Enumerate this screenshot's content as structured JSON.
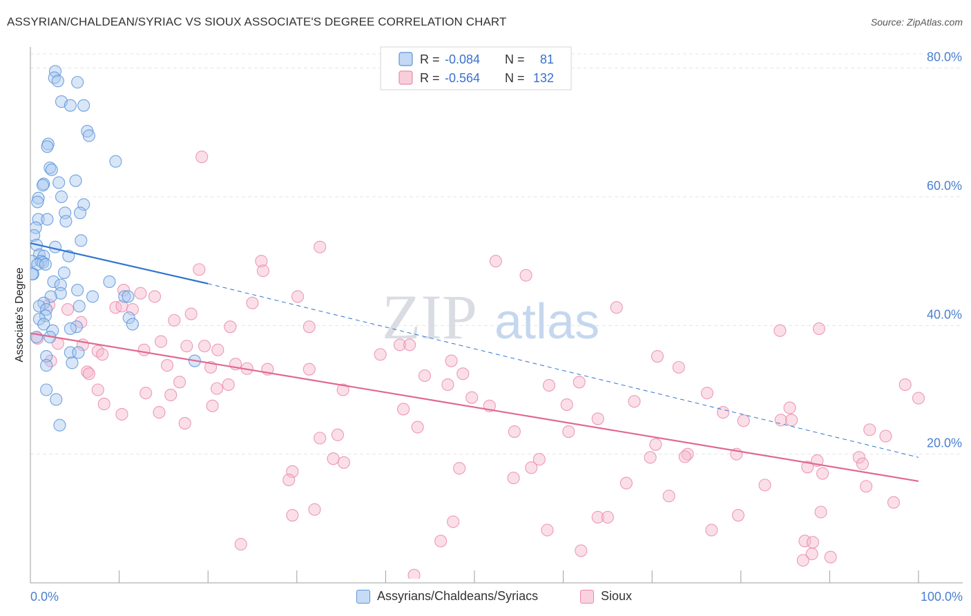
{
  "chart_data": {
    "type": "scatter",
    "title": "ASSYRIAN/CHALDEAN/SYRIAC VS SIOUX ASSOCIATE'S DEGREE CORRELATION CHART",
    "source": "Source: ZipAtlas.com",
    "ylabel": "Associate's Degree",
    "xlim": [
      0,
      100
    ],
    "ylim": [
      0,
      82
    ],
    "x_ticks": [
      "0.0%",
      "100.0%"
    ],
    "y_ticks": [
      {
        "value": 20,
        "label": "20.0%"
      },
      {
        "value": 40,
        "label": "40.0%"
      },
      {
        "value": 60,
        "label": "60.0%"
      },
      {
        "value": 80,
        "label": "80.0%"
      }
    ],
    "watermark": {
      "zip": "ZIP",
      "atlas": "atlas"
    },
    "legend_top": [
      {
        "r_label": "R = ",
        "r": "-0.084",
        "n_label": "N = ",
        "n": "81"
      },
      {
        "r_label": "R = ",
        "r": "-0.564",
        "n_label": "N = ",
        "n": "132"
      }
    ],
    "colors": {
      "blue_fill": "#a9c8ef",
      "blue_stroke": "#5b93d8",
      "blue_line": "#2f74d0",
      "pink_fill": "#f6b9cc",
      "pink_stroke": "#e98aa9",
      "pink_line": "#e2688f"
    },
    "series": [
      {
        "name": "Assyrians/Chaldeans/Syriacs",
        "trend": {
          "x0": 0,
          "y0": 52.8,
          "x1": 20,
          "y1": 46.5,
          "dash_x1": 100,
          "dash_y1": 19.5
        },
        "points": [
          [
            2.8,
            79.5
          ],
          [
            2.7,
            78.5
          ],
          [
            3.1,
            78.0
          ],
          [
            5.3,
            77.8
          ],
          [
            3.5,
            74.8
          ],
          [
            4.5,
            74.2
          ],
          [
            6.0,
            74.2
          ],
          [
            6.4,
            70.2
          ],
          [
            6.6,
            69.5
          ],
          [
            2.0,
            68.2
          ],
          [
            1.9,
            67.8
          ],
          [
            9.6,
            65.5
          ],
          [
            2.2,
            64.5
          ],
          [
            2.4,
            64.2
          ],
          [
            1.5,
            62.0
          ],
          [
            1.4,
            61.8
          ],
          [
            3.2,
            62.2
          ],
          [
            5.1,
            62.5
          ],
          [
            3.5,
            60.0
          ],
          [
            0.9,
            59.8
          ],
          [
            0.8,
            59.2
          ],
          [
            6.0,
            58.8
          ],
          [
            3.9,
            57.5
          ],
          [
            5.6,
            57.5
          ],
          [
            0.9,
            56.5
          ],
          [
            1.9,
            56.5
          ],
          [
            4.0,
            56.2
          ],
          [
            0.6,
            55.2
          ],
          [
            0.4,
            54.0
          ],
          [
            5.7,
            53.2
          ],
          [
            0.7,
            52.5
          ],
          [
            2.8,
            52.2
          ],
          [
            1.0,
            51.0
          ],
          [
            1.5,
            50.8
          ],
          [
            4.3,
            50.8
          ],
          [
            0.2,
            50.0
          ],
          [
            1.2,
            50.0
          ],
          [
            1.4,
            49.8
          ],
          [
            0.8,
            49.5
          ],
          [
            1.7,
            49.5
          ],
          [
            0.3,
            48.0
          ],
          [
            0.2,
            48.0
          ],
          [
            3.8,
            48.2
          ],
          [
            8.9,
            46.8
          ],
          [
            2.6,
            46.8
          ],
          [
            3.4,
            46.3
          ],
          [
            5.3,
            45.5
          ],
          [
            3.4,
            45.0
          ],
          [
            2.3,
            44.5
          ],
          [
            7.0,
            44.5
          ],
          [
            10.6,
            44.5
          ],
          [
            11.0,
            44.5
          ],
          [
            1.5,
            43.5
          ],
          [
            1.0,
            43.0
          ],
          [
            5.5,
            43.0
          ],
          [
            1.8,
            42.5
          ],
          [
            1.7,
            41.5
          ],
          [
            11.1,
            41.2
          ],
          [
            1.0,
            41.0
          ],
          [
            11.5,
            40.2
          ],
          [
            1.5,
            40.2
          ],
          [
            5.2,
            39.8
          ],
          [
            4.5,
            39.5
          ],
          [
            2.5,
            39.2
          ],
          [
            0.7,
            38.2
          ],
          [
            2.2,
            38.2
          ],
          [
            4.5,
            35.8
          ],
          [
            5.4,
            35.8
          ],
          [
            1.8,
            35.2
          ],
          [
            18.5,
            34.5
          ],
          [
            4.7,
            34.2
          ],
          [
            1.8,
            33.8
          ],
          [
            1.8,
            30.0
          ],
          [
            2.9,
            28.5
          ],
          [
            3.3,
            24.5
          ]
        ]
      },
      {
        "name": "Sioux",
        "trend": {
          "x0": 0,
          "y0": 38.8,
          "x1": 100,
          "y1": 15.8
        },
        "points": [
          [
            19.3,
            66.2
          ],
          [
            32.6,
            52.2
          ],
          [
            26.0,
            50.0
          ],
          [
            52.4,
            50.0
          ],
          [
            26.2,
            48.5
          ],
          [
            19.0,
            48.7
          ],
          [
            55.8,
            47.8
          ],
          [
            10.5,
            45.5
          ],
          [
            12.4,
            45.0
          ],
          [
            14.0,
            44.5
          ],
          [
            30.1,
            44.5
          ],
          [
            2.1,
            43.2
          ],
          [
            25.0,
            43.5
          ],
          [
            9.6,
            42.8
          ],
          [
            10.3,
            43.0
          ],
          [
            11.5,
            42.5
          ],
          [
            4.2,
            42.5
          ],
          [
            66.0,
            42.8
          ],
          [
            18.1,
            41.8
          ],
          [
            16.2,
            40.8
          ],
          [
            5.7,
            40.5
          ],
          [
            22.5,
            39.8
          ],
          [
            31.4,
            39.8
          ],
          [
            84.4,
            39.2
          ],
          [
            88.8,
            39.5
          ],
          [
            0.8,
            38.0
          ],
          [
            14.7,
            37.5
          ],
          [
            3.1,
            37.2
          ],
          [
            5.9,
            37.0
          ],
          [
            41.6,
            37.0
          ],
          [
            42.7,
            37.0
          ],
          [
            17.6,
            36.8
          ],
          [
            19.6,
            36.8
          ],
          [
            21.1,
            36.2
          ],
          [
            12.8,
            36.2
          ],
          [
            7.6,
            36.0
          ],
          [
            8.1,
            35.5
          ],
          [
            39.4,
            35.5
          ],
          [
            70.6,
            35.2
          ],
          [
            2.3,
            34.5
          ],
          [
            47.4,
            34.5
          ],
          [
            15.4,
            33.8
          ],
          [
            23.1,
            34.0
          ],
          [
            73.0,
            33.5
          ],
          [
            20.3,
            33.5
          ],
          [
            24.4,
            33.3
          ],
          [
            26.7,
            33.2
          ],
          [
            31.4,
            33.2
          ],
          [
            6.4,
            32.8
          ],
          [
            6.6,
            32.5
          ],
          [
            44.4,
            32.2
          ],
          [
            48.7,
            32.5
          ],
          [
            16.8,
            31.2
          ],
          [
            61.8,
            31.2
          ],
          [
            22.3,
            30.8
          ],
          [
            47.0,
            30.8
          ],
          [
            58.4,
            30.7
          ],
          [
            98.5,
            30.8
          ],
          [
            21.0,
            30.2
          ],
          [
            35.2,
            30.0
          ],
          [
            7.6,
            30.0
          ],
          [
            13.0,
            29.5
          ],
          [
            15.8,
            29.2
          ],
          [
            76.2,
            29.5
          ],
          [
            49.7,
            28.8
          ],
          [
            68.0,
            28.2
          ],
          [
            100,
            28.7
          ],
          [
            8.3,
            27.8
          ],
          [
            20.5,
            27.5
          ],
          [
            51.7,
            27.5
          ],
          [
            60.4,
            27.7
          ],
          [
            42.0,
            27.0
          ],
          [
            85.5,
            27.2
          ],
          [
            10.3,
            26.2
          ],
          [
            14.5,
            26.5
          ],
          [
            78.0,
            26.5
          ],
          [
            63.9,
            25.5
          ],
          [
            80.3,
            25.2
          ],
          [
            84.5,
            25.3
          ],
          [
            85.7,
            25.3
          ],
          [
            17.4,
            24.8
          ],
          [
            43.6,
            24.2
          ],
          [
            94.5,
            23.8
          ],
          [
            54.5,
            23.5
          ],
          [
            60.6,
            23.5
          ],
          [
            34.6,
            23.0
          ],
          [
            32.6,
            22.5
          ],
          [
            96.3,
            22.8
          ],
          [
            70.4,
            21.5
          ],
          [
            74.0,
            20.0
          ],
          [
            79.5,
            20.0
          ],
          [
            73.7,
            19.6
          ],
          [
            69.8,
            19.5
          ],
          [
            34.1,
            19.3
          ],
          [
            35.3,
            18.7
          ],
          [
            57.3,
            19.2
          ],
          [
            93.3,
            19.5
          ],
          [
            88.6,
            19.0
          ],
          [
            93.7,
            18.5
          ],
          [
            87.5,
            18.0
          ],
          [
            56.4,
            17.9
          ],
          [
            48.3,
            17.8
          ],
          [
            29.5,
            17.3
          ],
          [
            89.2,
            17.0
          ],
          [
            29.1,
            16.0
          ],
          [
            54.4,
            16.3
          ],
          [
            67.1,
            15.5
          ],
          [
            82.7,
            15.2
          ],
          [
            94.1,
            15.0
          ],
          [
            71.9,
            13.5
          ],
          [
            97.2,
            12.5
          ],
          [
            32.0,
            11.4
          ],
          [
            29.5,
            10.5
          ],
          [
            63.9,
            10.2
          ],
          [
            65.0,
            10.2
          ],
          [
            79.7,
            10.5
          ],
          [
            89.0,
            11.0
          ],
          [
            47.6,
            9.5
          ],
          [
            76.7,
            8.2
          ],
          [
            58.2,
            8.2
          ],
          [
            87.2,
            6.5
          ],
          [
            88.1,
            6.3
          ],
          [
            46.2,
            6.5
          ],
          [
            23.7,
            6.0
          ],
          [
            62.0,
            5.0
          ],
          [
            88.0,
            4.5
          ],
          [
            90.1,
            4.0
          ],
          [
            87.0,
            3.5
          ],
          [
            43.2,
            1.2
          ]
        ]
      }
    ]
  }
}
